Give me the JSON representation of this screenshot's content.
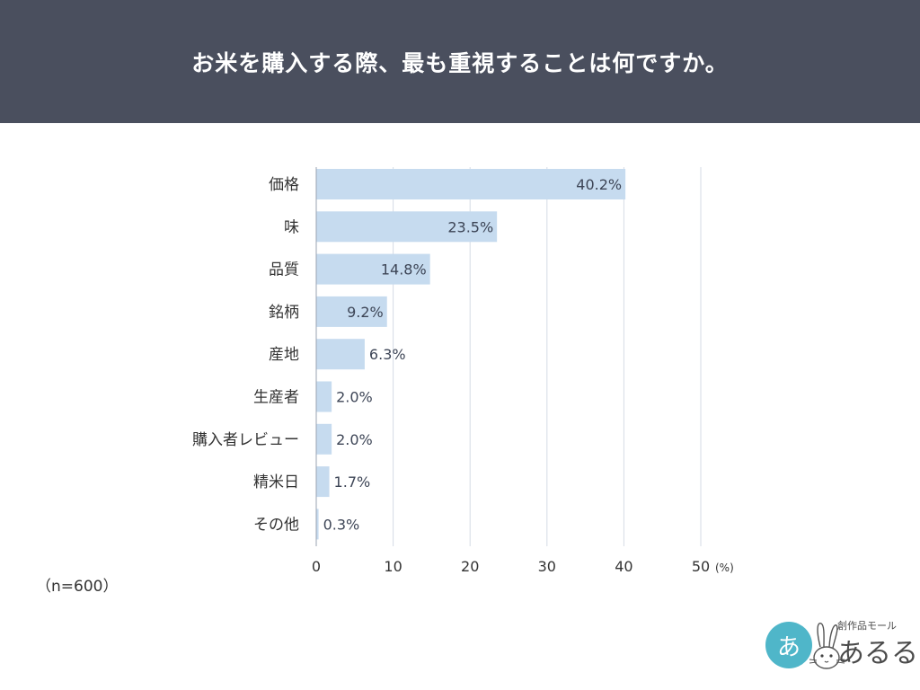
{
  "header": {
    "title": "お米を購入する際、最も重視することは何ですか。"
  },
  "chart_data": {
    "type": "bar",
    "orientation": "horizontal",
    "categories": [
      "価格",
      "味",
      "品質",
      "銘柄",
      "産地",
      "生産者",
      "購入者レビュー",
      "精米日",
      "その他"
    ],
    "values": [
      40.2,
      23.5,
      14.8,
      9.2,
      6.3,
      2.0,
      2.0,
      1.7,
      0.3
    ],
    "value_labels": [
      "40.2%",
      "23.5%",
      "14.8%",
      "9.2%",
      "6.3%",
      "2.0%",
      "2.0%",
      "1.7%",
      "0.3%"
    ],
    "xlim": [
      0,
      50
    ],
    "xticks": [
      0,
      10,
      20,
      30,
      40,
      50
    ],
    "x_unit": "(%)",
    "grid": true,
    "bar_color": "#c6dbef",
    "grid_color": "#d5dbe5"
  },
  "note": {
    "sample": "（n=600）"
  },
  "logo": {
    "glyph": "あ",
    "small_text": "創作品モール",
    "big_text": "あるる",
    "color": "#4fb6c9"
  }
}
